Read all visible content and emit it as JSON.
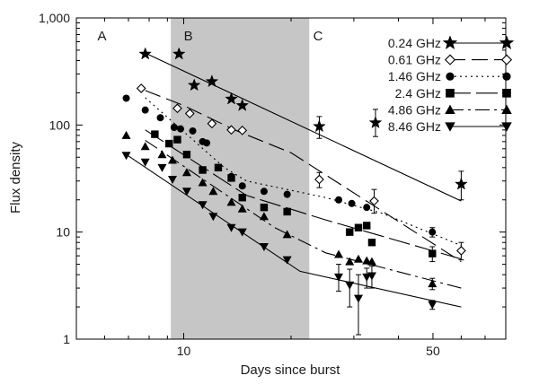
{
  "chart_data": {
    "type": "scatter",
    "xlabel": "Days since burst",
    "ylabel": "Flux density",
    "x_scale": "log",
    "y_scale": "log",
    "xlim": [
      5,
      80
    ],
    "ylim": [
      1,
      1000
    ],
    "x_ticks": [
      {
        "value": 10,
        "label": "10"
      },
      {
        "value": 50,
        "label": "50"
      }
    ],
    "y_ticks": [
      {
        "value": 1,
        "label": "1"
      },
      {
        "value": 10,
        "label": "10"
      },
      {
        "value": 100,
        "label": "100"
      },
      {
        "value": 1000,
        "label": "1,000"
      }
    ],
    "shaded_region": {
      "x": [
        9.2,
        22.5
      ],
      "color": "#c6c6c6"
    },
    "region_labels": [
      {
        "label": "A",
        "x": 5.9,
        "y": 680
      },
      {
        "label": "B",
        "x": 10.3,
        "y": 680
      },
      {
        "label": "C",
        "x": 23.8,
        "y": 680
      }
    ],
    "legend_position": "top-right",
    "series": [
      {
        "name": "0.24 GHz",
        "marker": "star",
        "fill": "#000000",
        "dash": "",
        "points": [
          {
            "x": 7.8,
            "y": 460
          },
          {
            "x": 9.7,
            "y": 460
          },
          {
            "x": 10.7,
            "y": 235
          },
          {
            "x": 12.0,
            "y": 255
          },
          {
            "x": 13.6,
            "y": 175
          },
          {
            "x": 14.6,
            "y": 152
          },
          {
            "x": 24.0,
            "y": 97,
            "yerr": [
              75,
              120
            ]
          },
          {
            "x": 34.5,
            "y": 105,
            "yerr": [
              78,
              140
            ]
          },
          {
            "x": 60.0,
            "y": 28,
            "yerr": [
              20,
              37
            ]
          }
        ],
        "fit": [
          {
            "x": 7.8,
            "y": 470
          },
          {
            "x": 60,
            "y": 19.5
          }
        ]
      },
      {
        "name": "0.61 GHz",
        "marker": "diamond",
        "fill": "#ffffff",
        "dash": "18,7",
        "points": [
          {
            "x": 7.6,
            "y": 220
          },
          {
            "x": 9.6,
            "y": 143
          },
          {
            "x": 10.4,
            "y": 128
          },
          {
            "x": 12.0,
            "y": 103
          },
          {
            "x": 13.6,
            "y": 90
          },
          {
            "x": 14.6,
            "y": 89
          },
          {
            "x": 24.0,
            "y": 31,
            "yerr": [
              26,
              36
            ]
          },
          {
            "x": 34.2,
            "y": 19.5,
            "yerr": [
              15,
              25
            ]
          },
          {
            "x": 60.0,
            "y": 6.7,
            "yerr": [
              5.5,
              8.0
            ]
          }
        ],
        "fit": [
          {
            "x": 7.8,
            "y": 210
          },
          {
            "x": 10,
            "y": 152
          },
          {
            "x": 14,
            "y": 89
          },
          {
            "x": 20,
            "y": 55
          },
          {
            "x": 60,
            "y": 5.3
          }
        ]
      },
      {
        "name": "1.46 GHz",
        "marker": "circle",
        "fill": "#000000",
        "dash": "2,4",
        "points": [
          {
            "x": 6.9,
            "y": 178
          },
          {
            "x": 7.8,
            "y": 138
          },
          {
            "x": 8.6,
            "y": 117
          },
          {
            "x": 9.4,
            "y": 95
          },
          {
            "x": 9.8,
            "y": 92
          },
          {
            "x": 10.6,
            "y": 88
          },
          {
            "x": 11.3,
            "y": 70
          },
          {
            "x": 11.6,
            "y": 68
          },
          {
            "x": 13.6,
            "y": 33
          },
          {
            "x": 14.6,
            "y": 27
          },
          {
            "x": 16.8,
            "y": 24
          },
          {
            "x": 19.5,
            "y": 22.5
          },
          {
            "x": 27.2,
            "y": 20
          },
          {
            "x": 29.6,
            "y": 18.5
          },
          {
            "x": 32.6,
            "y": 17
          },
          {
            "x": 49.8,
            "y": 10,
            "yerr": [
              9,
              11
            ]
          }
        ],
        "fit": [
          {
            "x": 7.8,
            "y": 180
          },
          {
            "x": 13,
            "y": 40
          },
          {
            "x": 15,
            "y": 30
          },
          {
            "x": 25,
            "y": 21
          },
          {
            "x": 36,
            "y": 15
          },
          {
            "x": 60,
            "y": 7.5
          }
        ]
      },
      {
        "name": "2.4 GHz",
        "marker": "square",
        "fill": "#000000",
        "dash": "24,6",
        "points": [
          {
            "x": 8.3,
            "y": 82
          },
          {
            "x": 9.1,
            "y": 67
          },
          {
            "x": 9.6,
            "y": 73
          },
          {
            "x": 10.2,
            "y": 53
          },
          {
            "x": 11.3,
            "y": 38
          },
          {
            "x": 12.5,
            "y": 40
          },
          {
            "x": 13.6,
            "y": 32
          },
          {
            "x": 14.6,
            "y": 21
          },
          {
            "x": 16.8,
            "y": 17
          },
          {
            "x": 19.5,
            "y": 15.5
          },
          {
            "x": 29.2,
            "y": 10
          },
          {
            "x": 30.9,
            "y": 11
          },
          {
            "x": 32.6,
            "y": 11.5
          },
          {
            "x": 33.7,
            "y": 8
          },
          {
            "x": 49.8,
            "y": 6.3,
            "yerr": [
              5.3,
              7.3
            ]
          }
        ],
        "fit": [
          {
            "x": 7.8,
            "y": 90
          },
          {
            "x": 15,
            "y": 22
          },
          {
            "x": 25,
            "y": 13
          },
          {
            "x": 60,
            "y": 5.6
          }
        ]
      },
      {
        "name": "4.86 GHz",
        "marker": "triangle-up",
        "fill": "#000000",
        "dash": "16,5,3,5",
        "points": [
          {
            "x": 6.9,
            "y": 80
          },
          {
            "x": 7.8,
            "y": 63
          },
          {
            "x": 8.7,
            "y": 53
          },
          {
            "x": 9.3,
            "y": 47
          },
          {
            "x": 10.2,
            "y": 36
          },
          {
            "x": 11.3,
            "y": 29
          },
          {
            "x": 12.1,
            "y": 24
          },
          {
            "x": 13.6,
            "y": 19
          },
          {
            "x": 14.6,
            "y": 16.5
          },
          {
            "x": 16.8,
            "y": 14
          },
          {
            "x": 19.5,
            "y": 9.5
          },
          {
            "x": 27.2,
            "y": 6.2
          },
          {
            "x": 29.2,
            "y": 5.3
          },
          {
            "x": 30.9,
            "y": 5.6
          },
          {
            "x": 32.6,
            "y": 5.4
          },
          {
            "x": 33.7,
            "y": 5.3
          },
          {
            "x": 49.8,
            "y": 3.3,
            "yerr": [
              2.9,
              3.7
            ]
          }
        ],
        "fit": [
          {
            "x": 7.8,
            "y": 72
          },
          {
            "x": 18,
            "y": 11
          },
          {
            "x": 25,
            "y": 6.4
          },
          {
            "x": 60,
            "y": 3
          }
        ]
      },
      {
        "name": "8.46 GHz",
        "marker": "triangle-down",
        "fill": "#000000",
        "dash": "",
        "points": [
          {
            "x": 6.9,
            "y": 52
          },
          {
            "x": 7.8,
            "y": 45
          },
          {
            "x": 8.7,
            "y": 40
          },
          {
            "x": 9.3,
            "y": 31
          },
          {
            "x": 10.2,
            "y": 24
          },
          {
            "x": 11.3,
            "y": 18
          },
          {
            "x": 12.1,
            "y": 14
          },
          {
            "x": 13.6,
            "y": 11
          },
          {
            "x": 14.6,
            "y": 10
          },
          {
            "x": 16.8,
            "y": 7.3
          },
          {
            "x": 19.5,
            "y": 5.5
          },
          {
            "x": 27.2,
            "y": 3.8,
            "yerr": [
              2.8,
              5
            ]
          },
          {
            "x": 29.2,
            "y": 3.2,
            "yerr": [
              2,
              4.5
            ]
          },
          {
            "x": 30.9,
            "y": 2.4,
            "yerr": [
              1.1,
              4
            ]
          },
          {
            "x": 32.6,
            "y": 3.8,
            "yerr": [
              3,
              4.6
            ]
          },
          {
            "x": 33.7,
            "y": 3.9,
            "yerr": [
              3,
              4.8
            ]
          },
          {
            "x": 49.8,
            "y": 2.1,
            "yerr": [
              1.9,
              2.3
            ]
          }
        ],
        "fit": [
          {
            "x": 6.9,
            "y": 53
          },
          {
            "x": 21.2,
            "y": 4.3
          },
          {
            "x": 60,
            "y": 2
          }
        ]
      }
    ]
  }
}
